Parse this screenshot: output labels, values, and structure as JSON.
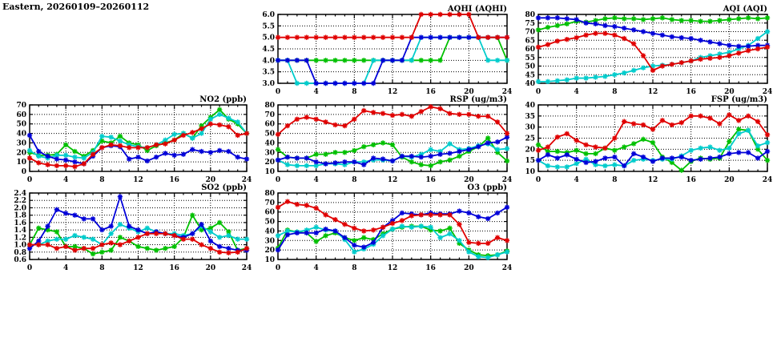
{
  "page_title": "Eastern, 20260109–20260112",
  "palette": {
    "red": "#e00000",
    "green": "#00c000",
    "blue": "#0000d8",
    "cyan": "#00cccc"
  },
  "chart_data": [
    {
      "id": "aqhi",
      "type": "line",
      "title": "AQHI (AQHI)",
      "xlabel": "",
      "ylabel": "",
      "xlim": [
        0,
        24
      ],
      "xticks": [
        0,
        4,
        8,
        12,
        16,
        20,
        24
      ],
      "x_step_hours": 1,
      "ylim": [
        3.0,
        6.0
      ],
      "ytick_step": 0.5,
      "ydecimals": 1,
      "grid": true,
      "legend": "none",
      "series": [
        {
          "name": "green-line",
          "color": "green",
          "values": [
            4,
            4,
            4,
            4,
            4,
            4,
            4,
            4,
            4,
            4,
            4,
            4,
            4,
            4,
            4,
            4,
            4,
            4,
            5,
            5,
            5,
            5,
            5,
            5,
            4
          ]
        },
        {
          "name": "cyan-line",
          "color": "cyan",
          "values": [
            4,
            4,
            3,
            3,
            3,
            3,
            3,
            3,
            3,
            3,
            4,
            4,
            4,
            4,
            4,
            5,
            5,
            5,
            5,
            5,
            5,
            5,
            4,
            4,
            4
          ]
        },
        {
          "name": "blue-line",
          "color": "blue",
          "values": [
            4,
            4,
            4,
            4,
            3,
            3,
            3,
            3,
            3,
            3,
            3,
            4,
            4,
            4,
            5,
            5,
            5,
            5,
            5,
            5,
            5,
            5,
            5,
            5,
            5
          ]
        },
        {
          "name": "red-line",
          "color": "red",
          "values": [
            5,
            5,
            5,
            5,
            5,
            5,
            5,
            5,
            5,
            5,
            5,
            5,
            5,
            5,
            5,
            6,
            6,
            6,
            6,
            6,
            6,
            5,
            5,
            5,
            5
          ]
        }
      ]
    },
    {
      "id": "aqi",
      "type": "line",
      "title": "AQI (AQI)",
      "xlabel": "",
      "ylabel": "",
      "xlim": [
        0,
        24
      ],
      "xticks": [
        0,
        4,
        8,
        12,
        16,
        20,
        24
      ],
      "x_step_hours": 1,
      "ylim": [
        40,
        80
      ],
      "ytick_step": 5,
      "ydecimals": 0,
      "grid": true,
      "legend": "none",
      "series": [
        {
          "name": "green-line",
          "color": "green",
          "values": [
            71,
            72.5,
            73.5,
            74.5,
            76,
            75.5,
            76.5,
            77.5,
            78,
            77.5,
            77.5,
            77,
            77.5,
            78,
            77,
            76.5,
            76.5,
            76,
            76,
            76.5,
            77,
            77.5,
            78,
            77.5,
            78
          ]
        },
        {
          "name": "cyan-line",
          "color": "cyan",
          "values": [
            41,
            41,
            41.5,
            42,
            43,
            43,
            43.5,
            44,
            45,
            46,
            47.5,
            49,
            50,
            50.5,
            51,
            52,
            53,
            55,
            56,
            57,
            58,
            60,
            62,
            66,
            70
          ]
        },
        {
          "name": "blue-line",
          "color": "blue",
          "values": [
            78,
            78,
            78,
            77.5,
            77,
            75,
            74.5,
            73.5,
            73,
            72,
            71,
            70,
            69,
            68,
            67,
            66.5,
            66,
            65,
            64,
            63,
            62,
            61.5,
            61.5,
            62,
            62
          ]
        },
        {
          "name": "red-line",
          "color": "red",
          "values": [
            61,
            62.5,
            64.5,
            65.5,
            66.5,
            68,
            69,
            69,
            68,
            66,
            63,
            56,
            47.5,
            50,
            51,
            52,
            53,
            54,
            54.5,
            55,
            56,
            57.5,
            59,
            60,
            61
          ]
        }
      ]
    },
    {
      "id": "no2",
      "type": "line",
      "title": "NO2 (ppb)",
      "xlabel": "",
      "ylabel": "",
      "xlim": [
        0,
        24
      ],
      "xticks": [
        0,
        4,
        8,
        12,
        16,
        20,
        24
      ],
      "x_step_hours": 1,
      "ylim": [
        0,
        70
      ],
      "ytick_step": 10,
      "ydecimals": 0,
      "grid": true,
      "legend": "none",
      "series": [
        {
          "name": "green-line",
          "color": "green",
          "values": [
            20,
            17,
            17,
            18,
            28,
            21,
            16,
            22,
            32,
            30,
            37,
            30,
            28,
            22,
            27,
            30,
            33,
            40,
            35,
            48,
            57,
            65,
            55,
            50,
            40
          ]
        },
        {
          "name": "cyan-line",
          "color": "cyan",
          "values": [
            22,
            16,
            14,
            17,
            17,
            15,
            14,
            20,
            37,
            36,
            32,
            28,
            26,
            25,
            28,
            33,
            39,
            40,
            35,
            40,
            55,
            60,
            56,
            52,
            40
          ]
        },
        {
          "name": "blue-line",
          "color": "blue",
          "values": [
            38,
            21,
            16,
            13,
            12,
            10,
            8,
            16,
            25,
            27,
            26,
            13,
            15,
            11,
            15,
            19,
            17,
            18,
            23,
            21,
            20,
            22,
            21,
            15,
            13
          ]
        },
        {
          "name": "red-line",
          "color": "red",
          "values": [
            14,
            9,
            7,
            6,
            6,
            5,
            8,
            18,
            25,
            28,
            27,
            25,
            25,
            25,
            28,
            29,
            33,
            38,
            41,
            45,
            50,
            49,
            47,
            38,
            40
          ]
        }
      ]
    },
    {
      "id": "rsp",
      "type": "line",
      "title": "RSP (ug/m3)",
      "xlabel": "",
      "ylabel": "",
      "xlim": [
        0,
        24
      ],
      "xticks": [
        0,
        4,
        8,
        12,
        16,
        20,
        24
      ],
      "x_step_hours": 1,
      "ylim": [
        10,
        80
      ],
      "ytick_step": 10,
      "ydecimals": 0,
      "grid": true,
      "legend": "none",
      "series": [
        {
          "name": "green-line",
          "color": "green",
          "values": [
            33,
            25,
            24,
            24,
            28,
            28,
            30,
            30,
            32,
            36,
            38,
            40,
            38,
            25,
            20,
            17,
            16,
            20,
            22,
            26,
            31,
            36,
            45,
            30,
            21
          ]
        },
        {
          "name": "cyan-line",
          "color": "cyan",
          "values": [
            22,
            17,
            16,
            16,
            16,
            18,
            18,
            17,
            20,
            20,
            22,
            22,
            21,
            26,
            25,
            28,
            33,
            31,
            39,
            33,
            34,
            37,
            39,
            33,
            34
          ]
        },
        {
          "name": "blue-line",
          "color": "blue",
          "values": [
            22,
            25,
            24,
            24,
            20,
            18,
            19,
            20,
            20,
            17,
            24,
            23,
            21,
            26,
            26,
            25,
            26,
            28,
            29,
            31,
            33,
            36,
            40,
            41,
            46
          ]
        },
        {
          "name": "red-line",
          "color": "red",
          "values": [
            49,
            58,
            65,
            67,
            65,
            62,
            59,
            58,
            65,
            74,
            72,
            71,
            69,
            70,
            68,
            73,
            78,
            76,
            71,
            70,
            70,
            68,
            68,
            62,
            50
          ]
        }
      ]
    },
    {
      "id": "fsp",
      "type": "line",
      "title": "FSP (ug/m3)",
      "xlabel": "",
      "ylabel": "",
      "xlim": [
        0,
        24
      ],
      "xticks": [
        0,
        4,
        8,
        12,
        16,
        20,
        24
      ],
      "x_step_hours": 1,
      "ylim": [
        10,
        40
      ],
      "ytick_step": 5,
      "ydecimals": 0,
      "grid": true,
      "legend": "none",
      "series": [
        {
          "name": "green-line",
          "color": "green",
          "values": [
            22,
            19,
            19,
            18.5,
            19.5,
            18,
            18,
            20.5,
            19.5,
            21,
            22.5,
            24.5,
            23,
            16.5,
            14,
            10.5,
            14.5,
            16,
            15.5,
            16,
            23.5,
            29,
            28.5,
            20,
            15
          ]
        },
        {
          "name": "cyan-line",
          "color": "cyan",
          "values": [
            15,
            12.5,
            12,
            12,
            13.5,
            15.5,
            13,
            12.5,
            13,
            12.5,
            15,
            15.5,
            15,
            15.5,
            15.5,
            17,
            19.5,
            20.5,
            21,
            19.5,
            20.5,
            27,
            28.5,
            21.5,
            23
          ]
        },
        {
          "name": "blue-line",
          "color": "blue",
          "values": [
            15,
            17.5,
            16,
            17.5,
            15.5,
            14,
            14.5,
            16,
            16.5,
            12.5,
            18,
            16.5,
            14.5,
            16,
            16,
            16.5,
            15,
            15.5,
            16,
            16.5,
            18,
            18.5,
            18.5,
            16,
            19
          ]
        },
        {
          "name": "red-line",
          "color": "red",
          "values": [
            19.5,
            21,
            25.5,
            27,
            24,
            22,
            21,
            20.5,
            25,
            32.5,
            31.5,
            31,
            29,
            33,
            31,
            32,
            35,
            35,
            34,
            31.5,
            35.5,
            33,
            35,
            32.5,
            26.5
          ]
        }
      ]
    },
    {
      "id": "so2",
      "type": "line",
      "title": "SO2 (ppb)",
      "xlabel": "",
      "ylabel": "",
      "xlim": [
        0,
        24
      ],
      "xticks": [
        0,
        4,
        8,
        12,
        16,
        20,
        24
      ],
      "x_step_hours": 1,
      "ylim": [
        0.6,
        2.4
      ],
      "ytick_step": 0.2,
      "ydecimals": 1,
      "grid": true,
      "legend": "none",
      "series": [
        {
          "name": "green-line",
          "color": "green",
          "values": [
            1.0,
            1.45,
            1.4,
            1.35,
            0.95,
            0.95,
            0.9,
            0.75,
            0.8,
            0.85,
            1.2,
            1.1,
            0.95,
            0.9,
            0.85,
            0.9,
            0.95,
            1.2,
            1.8,
            1.4,
            1.45,
            1.6,
            1.35,
            0.85,
            0.9
          ]
        },
        {
          "name": "cyan-line",
          "color": "cyan",
          "values": [
            1.0,
            1.0,
            1.1,
            1.15,
            1.15,
            1.25,
            1.2,
            1.15,
            1.0,
            1.3,
            1.55,
            1.45,
            1.35,
            1.45,
            1.35,
            1.3,
            1.3,
            1.25,
            1.3,
            1.5,
            1.35,
            1.2,
            1.25,
            1.15,
            1.15
          ]
        },
        {
          "name": "blue-line",
          "color": "blue",
          "values": [
            0.9,
            1.1,
            1.5,
            1.95,
            1.85,
            1.8,
            1.7,
            1.7,
            1.4,
            1.5,
            2.3,
            1.5,
            1.4,
            1.3,
            1.35,
            1.3,
            1.25,
            1.2,
            1.3,
            1.55,
            1.1,
            0.95,
            0.9,
            0.85,
            0.85
          ]
        },
        {
          "name": "red-line",
          "color": "red",
          "values": [
            1.0,
            1.0,
            1.0,
            0.9,
            0.95,
            0.85,
            0.9,
            0.9,
            1.0,
            1.05,
            1.0,
            1.1,
            1.2,
            1.3,
            1.3,
            1.3,
            1.25,
            1.15,
            1.15,
            1.0,
            0.9,
            0.8,
            0.78,
            0.8,
            0.9
          ]
        }
      ]
    },
    {
      "id": "o3",
      "type": "line",
      "title": "O3 (ppb)",
      "xlabel": "",
      "ylabel": "",
      "xlim": [
        0,
        24
      ],
      "xticks": [
        0,
        4,
        8,
        12,
        16,
        20,
        24
      ],
      "x_step_hours": 1,
      "ylim": [
        10,
        80
      ],
      "ytick_step": 10,
      "ydecimals": 0,
      "grid": true,
      "legend": "none",
      "series": [
        {
          "name": "green-line",
          "color": "green",
          "values": [
            22,
            41,
            39,
            38,
            29,
            35,
            38,
            33,
            30,
            33,
            31,
            37,
            42,
            44,
            45,
            45,
            41,
            40,
            43,
            27,
            20,
            15,
            14,
            15,
            19
          ]
        },
        {
          "name": "cyan-line",
          "color": "cyan",
          "values": [
            35,
            40,
            39,
            41,
            44,
            41,
            40,
            31,
            18,
            21,
            26,
            35,
            42,
            45,
            44,
            45,
            44,
            33,
            37,
            30,
            18,
            13,
            12,
            15,
            18
          ]
        },
        {
          "name": "blue-line",
          "color": "blue",
          "values": [
            20,
            36,
            38,
            38,
            38,
            42,
            40,
            33,
            25,
            23,
            28,
            44,
            51,
            59,
            58,
            57,
            59,
            58,
            58,
            61,
            59,
            55,
            53,
            59,
            65
          ]
        },
        {
          "name": "red-line",
          "color": "red",
          "values": [
            65,
            71,
            68,
            67,
            64,
            57,
            52,
            47,
            43,
            40,
            41,
            44,
            48,
            51,
            56,
            57,
            57,
            57,
            57,
            47,
            28,
            27,
            27,
            33,
            30
          ]
        }
      ]
    }
  ]
}
